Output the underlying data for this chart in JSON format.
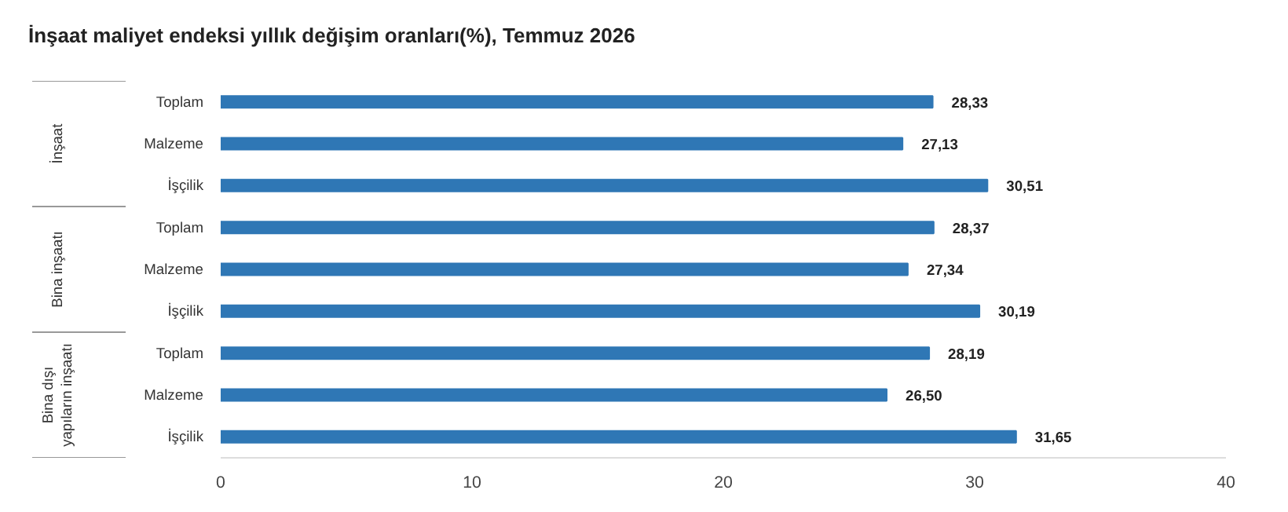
{
  "chart_data": {
    "type": "bar",
    "orientation": "horizontal",
    "title": "İnşaat maliyet endeksi yıllık değişim oranları(%), Temmuz 2026",
    "categories": [
      "Toplam",
      "Malzeme",
      "İşçilik",
      "Toplam",
      "Malzeme",
      "İşçilik",
      "Toplam",
      "Malzeme",
      "İşçilik"
    ],
    "values": [
      28.33,
      27.13,
      30.51,
      28.37,
      27.34,
      30.19,
      28.19,
      26.5,
      31.65
    ],
    "value_labels": [
      "28,33",
      "27,13",
      "30,51",
      "28,37",
      "27,34",
      "30,19",
      "28,19",
      "26,50",
      "31,65"
    ],
    "color": "#2f77b5",
    "xlim": [
      0,
      40
    ],
    "xticks": [
      0,
      10,
      20,
      30,
      40
    ],
    "annotations": [
      "İnşaat",
      "Bina inşaatı",
      "Bina dışı yapıların inşaatı"
    ],
    "grid": false
  }
}
